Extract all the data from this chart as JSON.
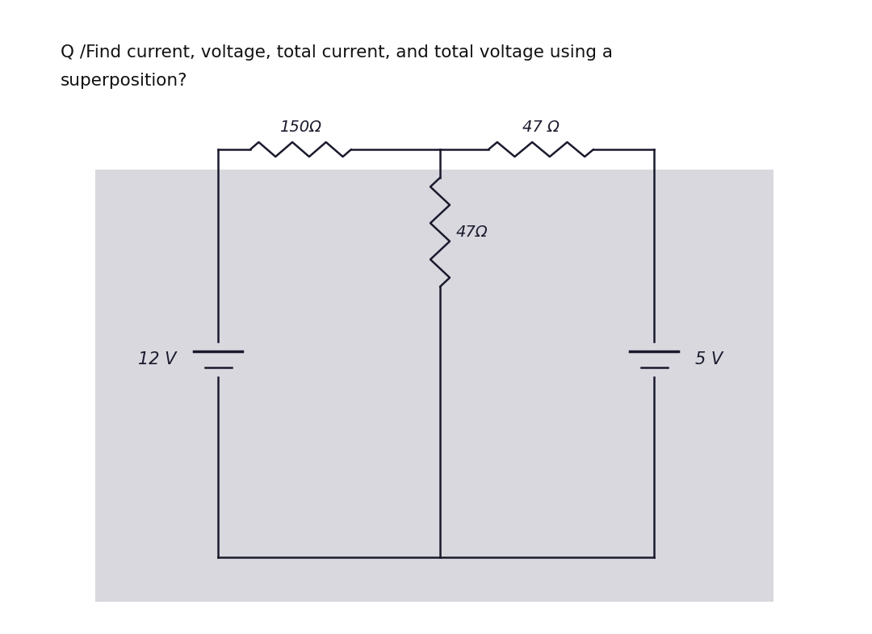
{
  "title_line1": "Q /Find current, voltage, total current, and total voltage using a",
  "title_line2": "superposition?",
  "title_fontsize": 15.5,
  "page_bg": "#ffffff",
  "circuit_bg": "#d8d8de",
  "line_color": "#1a1a2e",
  "text_color": "#111111",
  "resistor_150_label": "150Ω",
  "resistor_47_top_label": "47 Ω",
  "resistor_47_mid_label": "47Ω",
  "v12_label": "12 V",
  "v5_label": "5 V",
  "lw": 1.8
}
